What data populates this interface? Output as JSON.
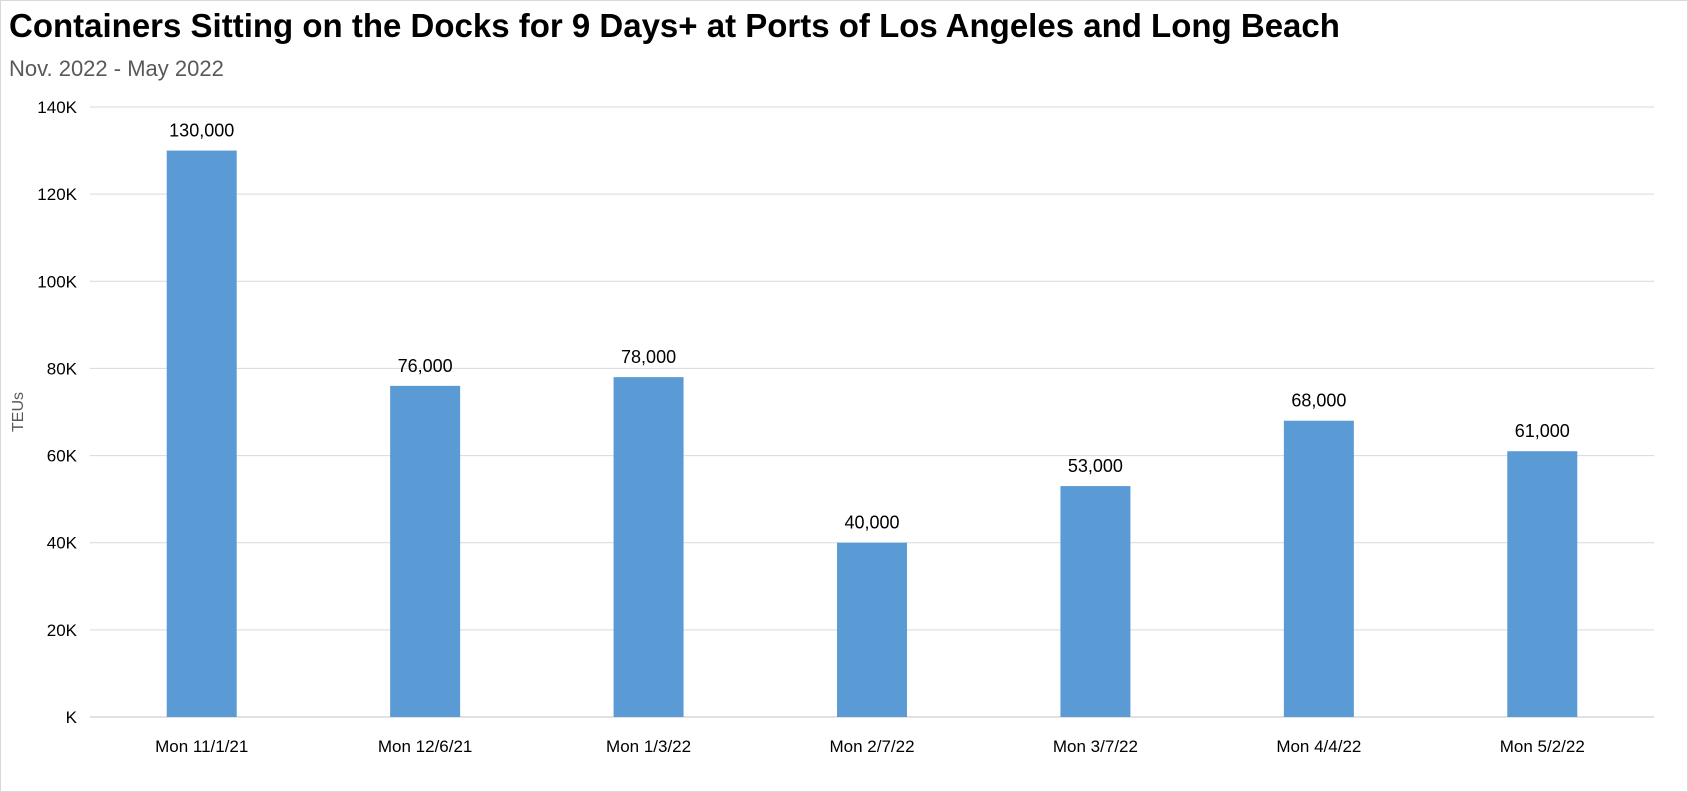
{
  "colors": {
    "bar": "#5b9bd5",
    "gridline": "#d9d9d9",
    "axis_line": "#d9d9d9",
    "title": "#000000",
    "subtitle": "#595959"
  },
  "chart_data": {
    "type": "bar",
    "title": "Containers Sitting on the Docks for 9 Days+ at Ports of Los Angeles and Long Beach",
    "subtitle": "Nov. 2022 - May 2022",
    "xlabel": "",
    "ylabel": "TEUs",
    "categories": [
      "Mon 11/1/21",
      "Mon 12/6/21",
      "Mon 1/3/22",
      "Mon 2/7/22",
      "Mon 3/7/22",
      "Mon 4/4/22",
      "Mon 5/2/22"
    ],
    "values": [
      130000,
      76000,
      78000,
      40000,
      53000,
      68000,
      61000
    ],
    "data_labels": [
      "130,000",
      "76,000",
      "78,000",
      "40,000",
      "53,000",
      "68,000",
      "61,000"
    ],
    "ylim": [
      0,
      140000
    ],
    "yticks": [
      0,
      20000,
      40000,
      60000,
      80000,
      100000,
      120000,
      140000
    ],
    "ytick_labels": [
      "K",
      "20K",
      "40K",
      "60K",
      "80K",
      "100K",
      "120K",
      "140K"
    ],
    "grid": true,
    "legend": "none"
  }
}
